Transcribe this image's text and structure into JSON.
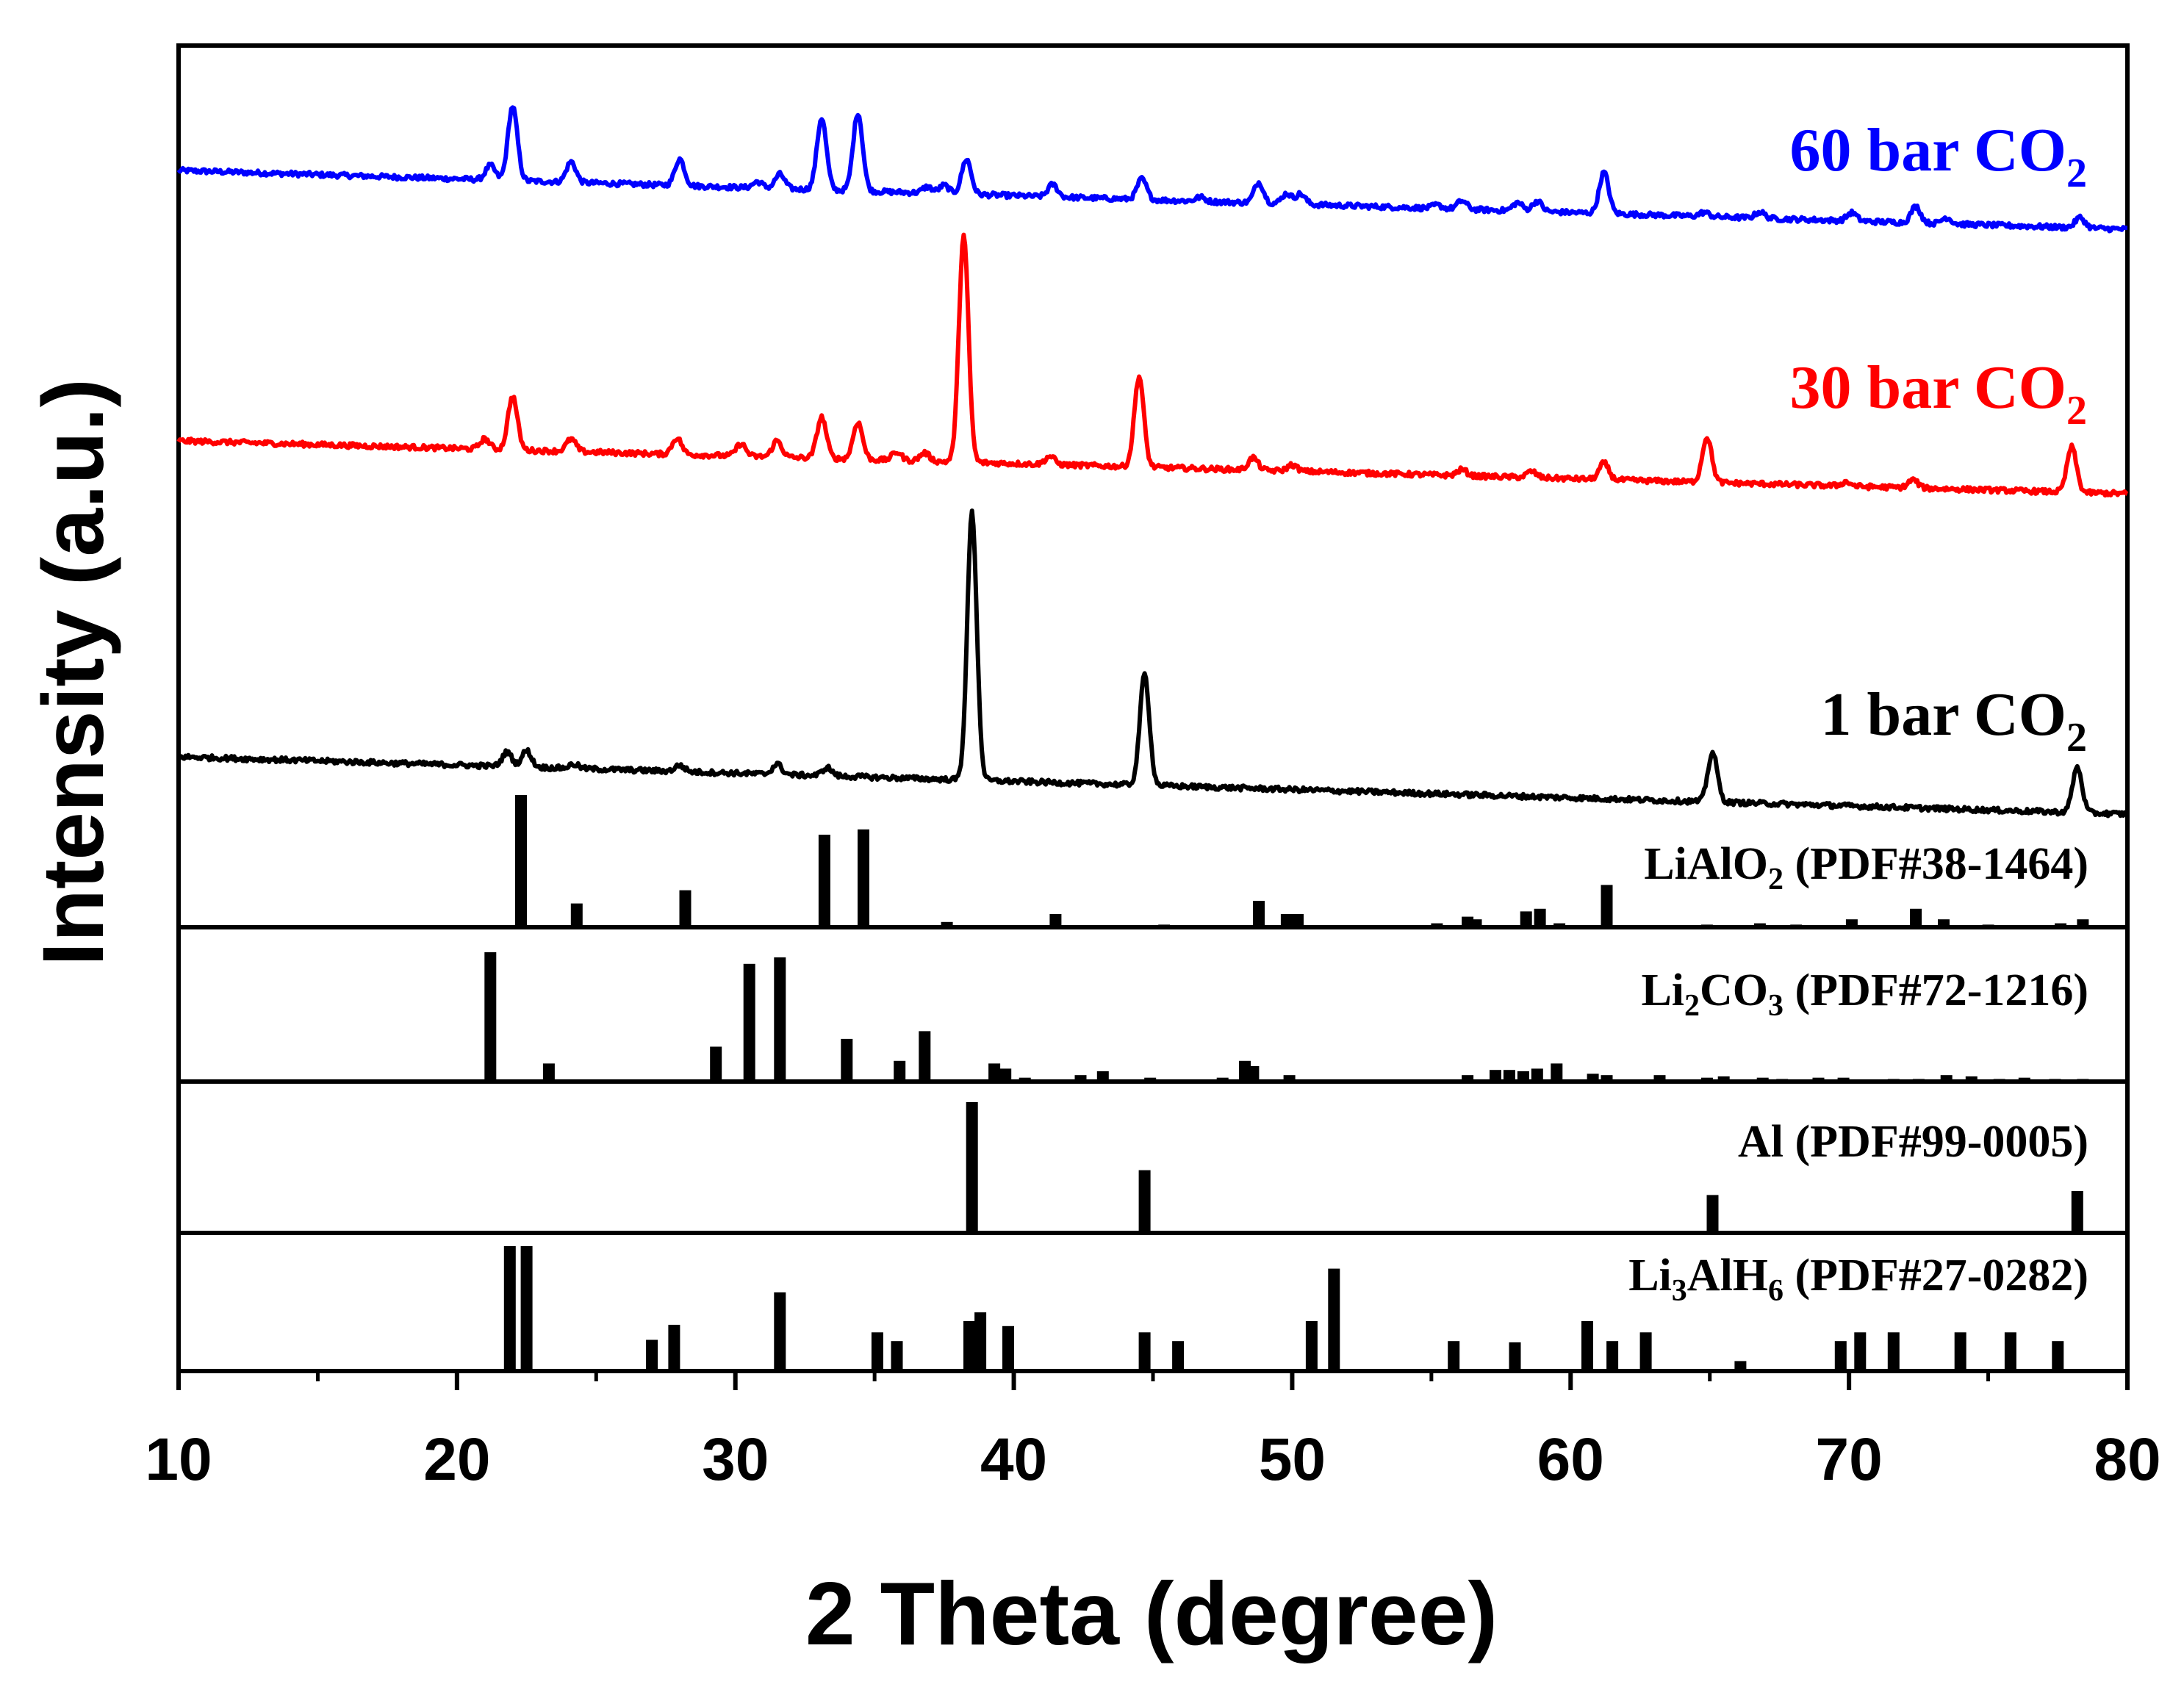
{
  "chart_data": {
    "type": "line",
    "title": "",
    "xlabel": "2 Theta (degree)",
    "ylabel": "Intensity (a.u.)",
    "xlim": [
      10,
      80
    ],
    "x_ticks": [
      10,
      20,
      30,
      40,
      50,
      60,
      70,
      80
    ],
    "x_tick_labels": [
      "10",
      "20",
      "30",
      "40",
      "50",
      "60",
      "70",
      "80"
    ],
    "series": [
      {
        "name": "60 bar CO2",
        "label": "60 bar CO",
        "label_sub": "2",
        "color": "#0000ff",
        "baseline": [
          [
            10,
            0.1
          ],
          [
            80,
            0.0
          ]
        ],
        "peaks": [
          [
            21.2,
            0.035
          ],
          [
            22.0,
            0.18
          ],
          [
            24.1,
            0.05
          ],
          [
            28.0,
            0.065
          ],
          [
            30.8,
            0.015
          ],
          [
            31.6,
            0.035
          ],
          [
            33.1,
            0.175
          ],
          [
            34.4,
            0.19
          ],
          [
            36.9,
            0.015
          ],
          [
            37.5,
            0.02
          ],
          [
            38.3,
            0.085
          ],
          [
            41.4,
            0.03
          ],
          [
            44.6,
            0.05
          ],
          [
            46.7,
            0.01
          ],
          [
            48.8,
            0.05
          ],
          [
            49.8,
            0.025
          ],
          [
            50.3,
            0.025
          ],
          [
            55.2,
            0.008
          ],
          [
            56.1,
            0.02
          ],
          [
            58.1,
            0.02
          ],
          [
            58.8,
            0.025
          ],
          [
            61.2,
            0.1
          ],
          [
            64.8,
            0.01
          ],
          [
            66.8,
            0.015
          ],
          [
            70.1,
            0.02
          ],
          [
            72.4,
            0.04
          ],
          [
            73.5,
            0.015
          ],
          [
            78.3,
            0.025
          ]
        ]
      },
      {
        "name": "30 bar CO2",
        "label": "30 bar CO",
        "label_sub": "2",
        "color": "#ff0000",
        "baseline": [
          [
            10,
            0.1
          ],
          [
            80,
            0.0
          ]
        ],
        "peaks": [
          [
            21.0,
            0.025
          ],
          [
            22.0,
            0.13
          ],
          [
            24.1,
            0.03
          ],
          [
            27.9,
            0.04
          ],
          [
            30.2,
            0.03
          ],
          [
            31.5,
            0.04
          ],
          [
            33.1,
            0.1
          ],
          [
            34.4,
            0.09
          ],
          [
            35.8,
            0.02
          ],
          [
            36.8,
            0.02
          ],
          [
            38.2,
            0.55
          ],
          [
            41.3,
            0.02
          ],
          [
            44.5,
            0.22
          ],
          [
            48.6,
            0.03
          ],
          [
            50.0,
            0.015
          ],
          [
            56.1,
            0.015
          ],
          [
            58.6,
            0.015
          ],
          [
            61.2,
            0.04
          ],
          [
            64.9,
            0.11
          ],
          [
            69.9,
            0.01
          ],
          [
            72.3,
            0.02
          ],
          [
            78.0,
            0.11
          ]
        ]
      },
      {
        "name": "1 bar CO2",
        "label": "1 bar CO",
        "label_sub": "2",
        "color": "#000000",
        "baseline": [
          [
            10,
            0.1
          ],
          [
            80,
            0.0
          ]
        ],
        "peaks": [
          [
            21.8,
            0.035
          ],
          [
            22.5,
            0.04
          ],
          [
            24.2,
            0.01
          ],
          [
            28.0,
            0.015
          ],
          [
            31.5,
            0.025
          ],
          [
            33.3,
            0.02
          ],
          [
            38.5,
            0.65
          ],
          [
            44.7,
            0.27
          ],
          [
            65.1,
            0.12
          ],
          [
            78.2,
            0.11
          ]
        ]
      }
    ],
    "references": [
      {
        "name": "LiAlO2 (PDF#38-1464)",
        "label_main": "LiAlO",
        "label_sub": "2",
        "label_rest": " (PDF#38-1464)",
        "lines": [
          [
            22.3,
            100
          ],
          [
            24.3,
            18
          ],
          [
            28.2,
            28
          ],
          [
            33.2,
            70
          ],
          [
            34.6,
            74
          ],
          [
            37.6,
            4
          ],
          [
            41.5,
            10
          ],
          [
            45.4,
            2
          ],
          [
            46.5,
            1
          ],
          [
            48.8,
            20
          ],
          [
            49.8,
            10
          ],
          [
            50.2,
            10
          ],
          [
            55.2,
            3
          ],
          [
            56.3,
            8
          ],
          [
            56.6,
            6
          ],
          [
            58.4,
            12
          ],
          [
            58.9,
            14
          ],
          [
            59.6,
            3
          ],
          [
            61.3,
            32
          ],
          [
            64.9,
            2
          ],
          [
            66.8,
            3
          ],
          [
            68.1,
            2
          ],
          [
            70.1,
            6
          ],
          [
            72.4,
            14
          ],
          [
            73.4,
            6
          ],
          [
            75.0,
            2
          ],
          [
            77.6,
            3
          ],
          [
            78.4,
            6
          ]
        ]
      },
      {
        "name": "Li2CO3 (PDF#72-1216)",
        "label_main": "Li",
        "label_sub": "2",
        "label_rest": "CO",
        "label_sub2": "3",
        "label_rest2": " (PDF#72-1216)",
        "lines": [
          [
            21.2,
            100
          ],
          [
            23.3,
            14
          ],
          [
            29.3,
            27
          ],
          [
            30.5,
            91
          ],
          [
            31.6,
            96
          ],
          [
            34.0,
            33
          ],
          [
            35.9,
            16
          ],
          [
            36.8,
            39
          ],
          [
            39.3,
            14
          ],
          [
            39.7,
            10
          ],
          [
            40.4,
            3
          ],
          [
            42.4,
            5
          ],
          [
            43.2,
            8
          ],
          [
            44.9,
            3
          ],
          [
            47.5,
            3
          ],
          [
            48.3,
            16
          ],
          [
            48.6,
            12
          ],
          [
            49.9,
            5
          ],
          [
            56.3,
            5
          ],
          [
            57.3,
            9
          ],
          [
            57.8,
            9
          ],
          [
            58.3,
            8
          ],
          [
            58.8,
            10
          ],
          [
            59.5,
            14
          ],
          [
            60.8,
            6
          ],
          [
            61.3,
            5
          ],
          [
            63.2,
            5
          ],
          [
            64.9,
            3
          ],
          [
            65.5,
            4
          ],
          [
            66.9,
            3
          ],
          [
            67.6,
            2
          ],
          [
            68.9,
            3
          ],
          [
            69.8,
            3
          ],
          [
            71.6,
            2
          ],
          [
            72.5,
            2
          ],
          [
            73.5,
            5
          ],
          [
            74.4,
            4
          ],
          [
            75.4,
            2
          ],
          [
            76.3,
            3
          ],
          [
            77.4,
            2
          ],
          [
            78.4,
            2
          ]
        ]
      },
      {
        "name": "Al (PDF#99-0005)",
        "label_main": "Al (PDF#99-0005)",
        "lines": [
          [
            38.5,
            100
          ],
          [
            44.7,
            48
          ],
          [
            65.1,
            29
          ],
          [
            78.2,
            32
          ]
        ]
      },
      {
        "name": "Li3AlH6 (PDF#27-0282)",
        "label_main": "Li",
        "label_sub": "3",
        "label_rest": "AlH",
        "label_sub2": "6",
        "label_rest2": " (PDF#27-0282)",
        "lines": [
          [
            21.9,
            100
          ],
          [
            22.5,
            100
          ],
          [
            27.0,
            25
          ],
          [
            27.8,
            37
          ],
          [
            31.6,
            63
          ],
          [
            35.1,
            31
          ],
          [
            35.8,
            24
          ],
          [
            38.4,
            40
          ],
          [
            38.8,
            47
          ],
          [
            39.8,
            36
          ],
          [
            44.7,
            31
          ],
          [
            45.9,
            24
          ],
          [
            50.7,
            40
          ],
          [
            51.5,
            82
          ],
          [
            55.8,
            24
          ],
          [
            58.0,
            23
          ],
          [
            60.6,
            40
          ],
          [
            61.5,
            24
          ],
          [
            62.7,
            31
          ],
          [
            66.1,
            8
          ],
          [
            69.7,
            24
          ],
          [
            70.4,
            31
          ],
          [
            71.6,
            31
          ],
          [
            74.0,
            31
          ],
          [
            75.8,
            31
          ],
          [
            77.5,
            24
          ]
        ]
      }
    ]
  }
}
